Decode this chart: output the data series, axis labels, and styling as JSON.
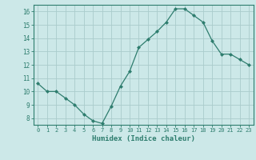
{
  "x": [
    0,
    1,
    2,
    3,
    4,
    5,
    6,
    7,
    8,
    9,
    10,
    11,
    12,
    13,
    14,
    15,
    16,
    17,
    18,
    19,
    20,
    21,
    22,
    23
  ],
  "y": [
    10.6,
    10.0,
    10.0,
    9.5,
    9.0,
    8.3,
    7.8,
    7.6,
    8.9,
    10.4,
    11.5,
    13.3,
    13.9,
    14.5,
    15.2,
    16.2,
    16.2,
    15.7,
    15.2,
    13.8,
    12.8,
    12.8,
    12.4,
    12.0
  ],
  "xlabel": "Humidex (Indice chaleur)",
  "ylim": [
    7.5,
    16.5
  ],
  "xlim": [
    -0.5,
    23.5
  ],
  "yticks": [
    8,
    9,
    10,
    11,
    12,
    13,
    14,
    15,
    16
  ],
  "xticks": [
    0,
    1,
    2,
    3,
    4,
    5,
    6,
    7,
    8,
    9,
    10,
    11,
    12,
    13,
    14,
    15,
    16,
    17,
    18,
    19,
    20,
    21,
    22,
    23
  ],
  "line_color": "#2e7d6e",
  "marker_color": "#2e7d6e",
  "bg_color": "#cce8e8",
  "grid_color": "#aacccc",
  "axis_label_color": "#2e7d6e",
  "tick_color": "#2e7d6e",
  "spine_color": "#2e7d6e"
}
